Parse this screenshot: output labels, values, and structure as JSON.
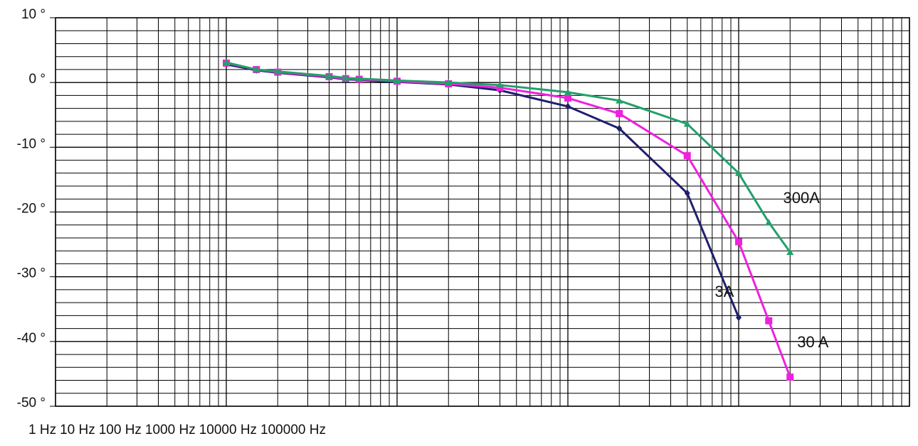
{
  "chart_data": {
    "type": "line",
    "x": [
      10,
      15,
      20,
      40,
      50,
      60,
      100,
      200,
      400,
      1000,
      2000,
      5000,
      10000,
      15000,
      20000
    ],
    "log_x": true,
    "xlim": [
      1,
      100000
    ],
    "xticks": [
      {
        "value": 1,
        "label": "1 Hz"
      },
      {
        "value": 10,
        "label": "10 Hz"
      },
      {
        "value": 100,
        "label": "100 Hz"
      },
      {
        "value": 1000,
        "label": "1000 Hz"
      },
      {
        "value": 10000,
        "label": "10000 Hz"
      },
      {
        "value": 100000,
        "label": "100000 Hz"
      }
    ],
    "ylim": [
      -50,
      10
    ],
    "yticks": [
      {
        "value": -50,
        "label": "-50 °"
      },
      {
        "value": -40,
        "label": "-40 °"
      },
      {
        "value": -30,
        "label": "-30 °"
      },
      {
        "value": -20,
        "label": "-20 °"
      },
      {
        "value": -10,
        "label": "-10 °"
      },
      {
        "value": 0,
        "label": "0 °"
      },
      {
        "value": 10,
        "label": "10 °"
      }
    ],
    "grid": true,
    "minor_grid": true,
    "series": [
      {
        "name": "3A",
        "color": "#1f1f6e",
        "marker": "diamond",
        "values": [
          2.8,
          1.9,
          1.5,
          0.8,
          0.5,
          0.4,
          0.1,
          -0.3,
          -1.2,
          -3.7,
          -7.1,
          -17.1,
          -36.3,
          null,
          null
        ]
      },
      {
        "name": "30 A",
        "color": "#ee22dd",
        "marker": "square",
        "values": [
          3.0,
          2.0,
          1.6,
          0.9,
          0.6,
          0.5,
          0.2,
          -0.2,
          -0.8,
          -2.4,
          -4.8,
          -11.3,
          -24.6,
          -36.8,
          -45.5
        ]
      },
      {
        "name": "300A",
        "color": "#22a06b",
        "marker": "triangle",
        "values": [
          3.1,
          2.0,
          1.7,
          1.0,
          0.7,
          0.6,
          0.3,
          0.0,
          -0.4,
          -1.5,
          -2.8,
          -6.4,
          -14.0,
          -21.6,
          -26.2
        ]
      }
    ]
  }
}
